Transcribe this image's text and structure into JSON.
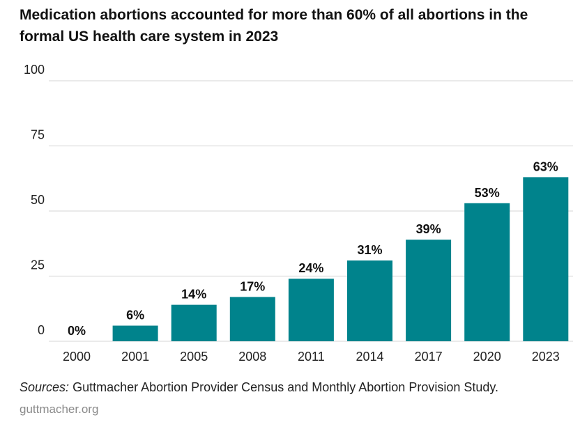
{
  "header": {
    "title": "Medication abortions accounted for more than 60% of all abortions in the formal US health care system in 2023"
  },
  "chart_data": {
    "type": "bar",
    "categories": [
      "2000",
      "2001",
      "2005",
      "2008",
      "2011",
      "2014",
      "2017",
      "2020",
      "2023"
    ],
    "values": [
      0,
      6,
      14,
      17,
      24,
      31,
      39,
      53,
      63
    ],
    "data_labels": [
      "0%",
      "6%",
      "14%",
      "17%",
      "24%",
      "31%",
      "39%",
      "53%",
      "63%"
    ],
    "yticks": [
      "0",
      "25",
      "50",
      "75",
      "100"
    ],
    "ylim": [
      0,
      100
    ],
    "grid": true,
    "bar_color": "#00838c",
    "gridline_color": "#dddddd"
  },
  "sources": {
    "lead": "Sources:",
    "text": "Guttmacher Abortion Provider Census and Monthly Abortion Provision Study."
  },
  "footer": {
    "site": "guttmacher.org"
  },
  "colors": {
    "bar": "#00838c",
    "text": "#111111",
    "muted": "#8a8a8a"
  }
}
